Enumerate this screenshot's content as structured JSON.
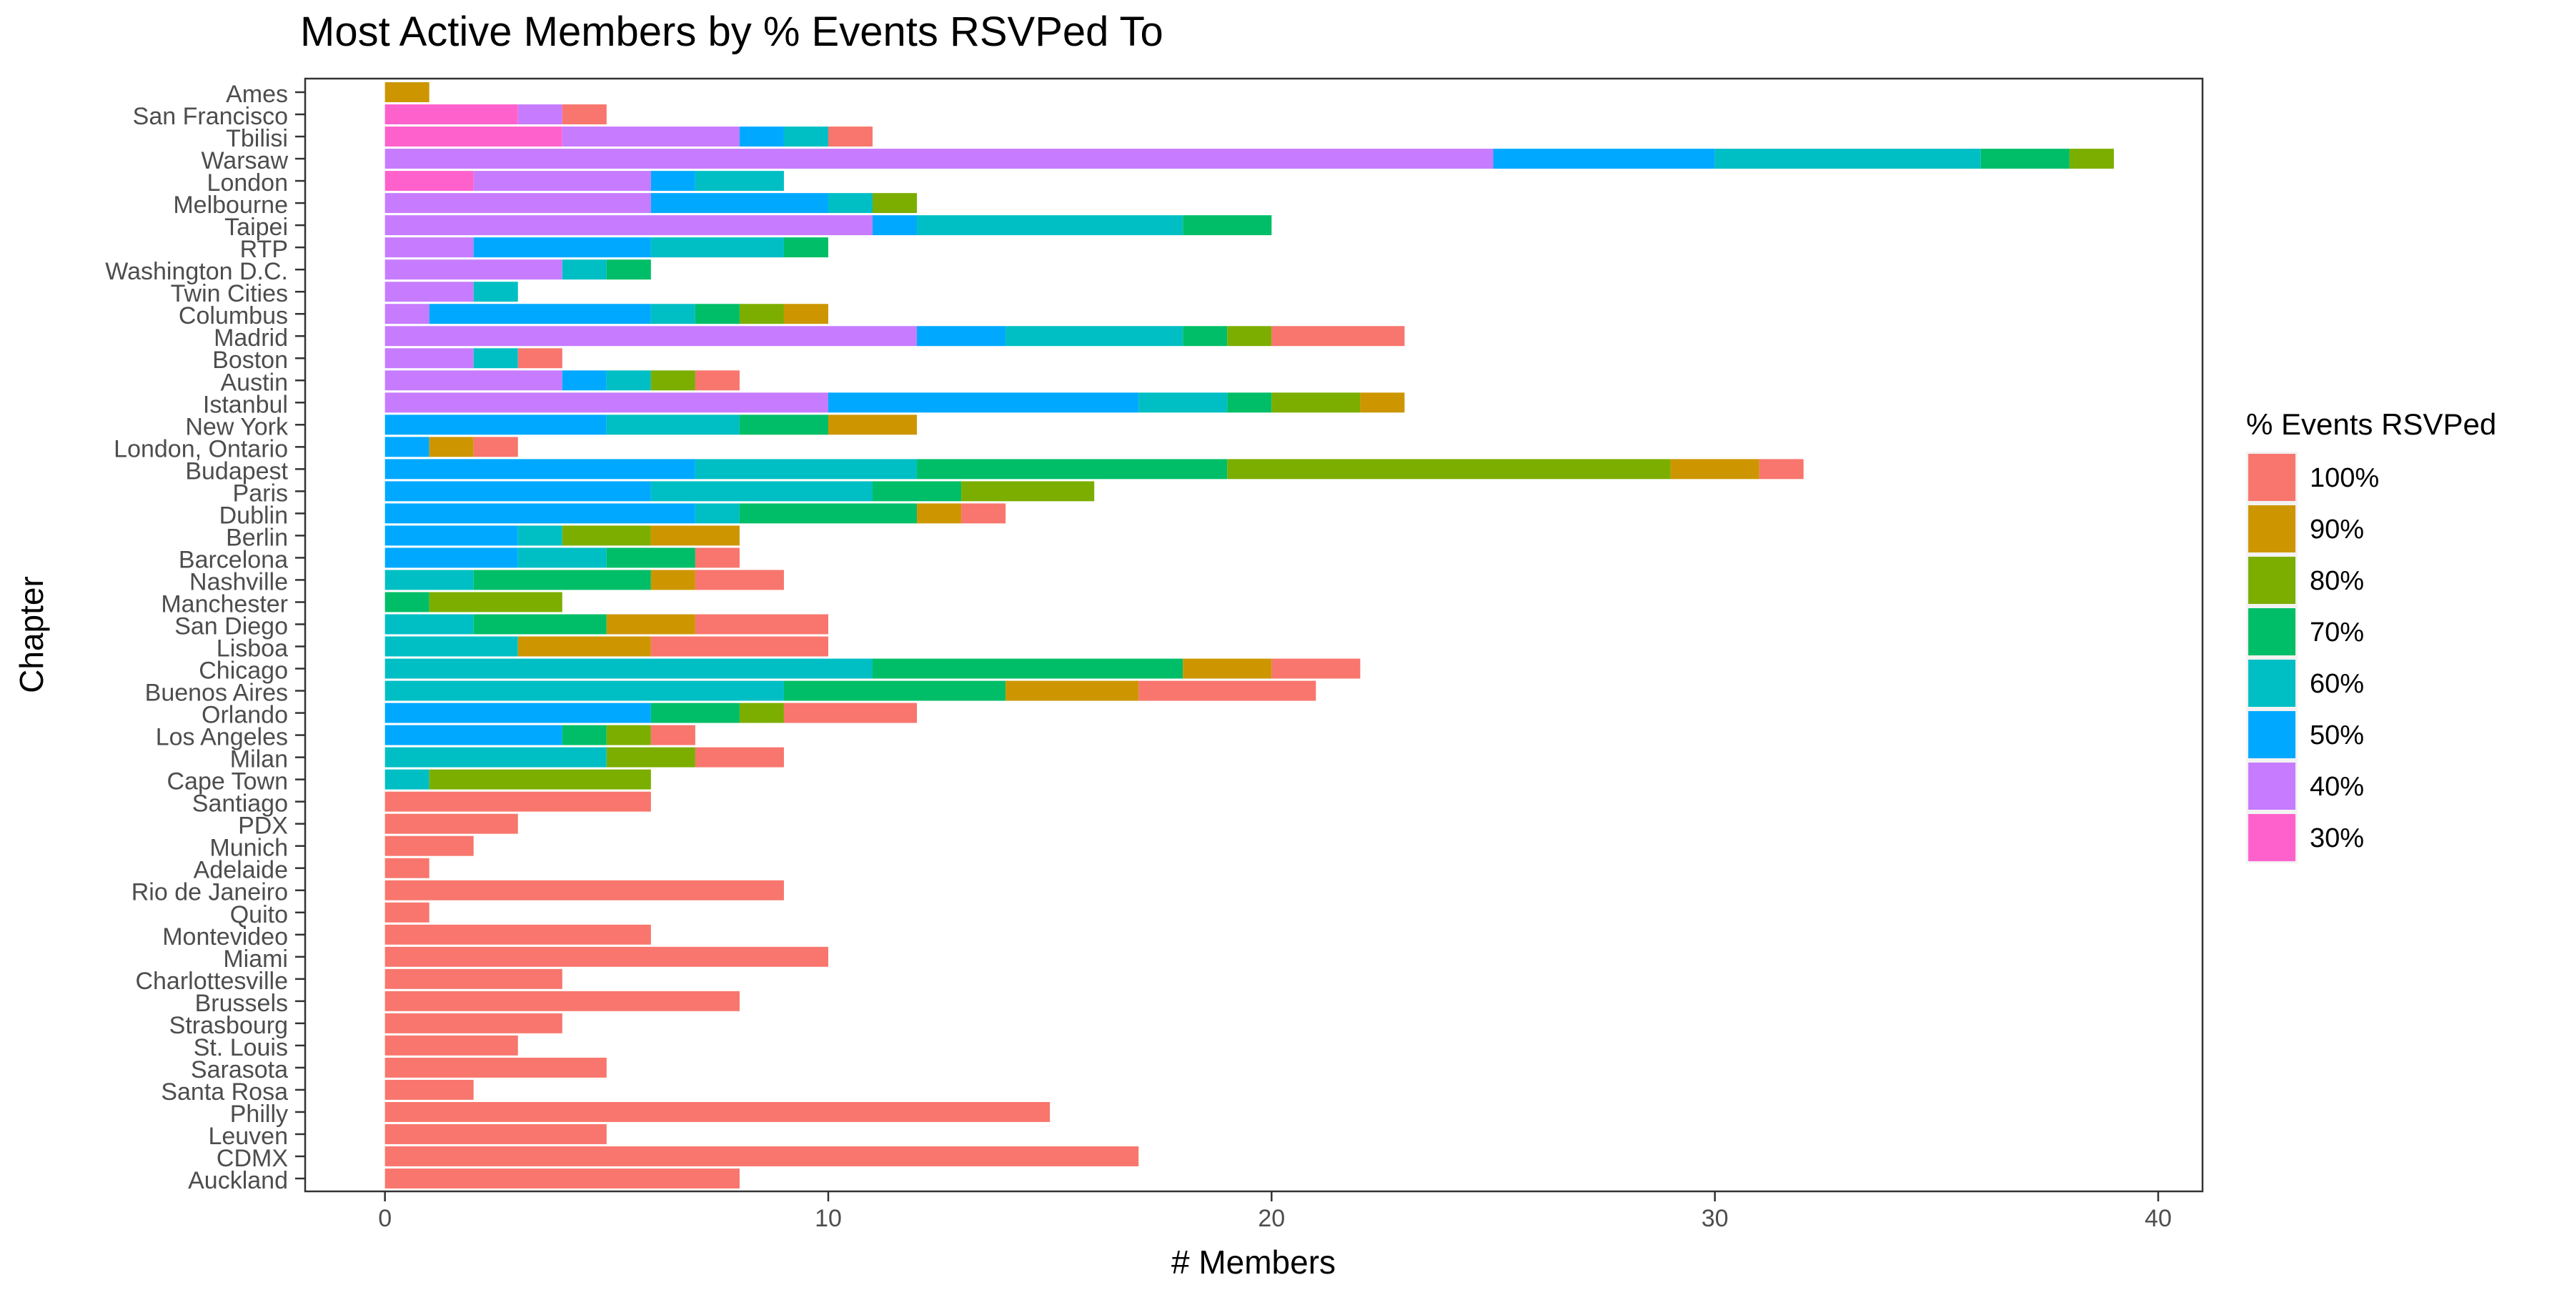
{
  "chart_data": {
    "type": "bar",
    "orientation": "horizontal",
    "stacked": true,
    "title": "Most Active Members by % Events RSVPed To",
    "xlabel": "# Members",
    "ylabel": "Chapter",
    "xlim": [
      -1.8,
      41.0
    ],
    "xticks": [
      0,
      10,
      20,
      30,
      40
    ],
    "grid": false,
    "legend_position": "right",
    "legend_title": "% Events RSVPed",
    "categories": [
      "Ames",
      "San Francisco",
      "Tbilisi",
      "Warsaw",
      "London",
      "Melbourne",
      "Taipei",
      "RTP",
      "Washington D.C.",
      "Twin Cities",
      "Columbus",
      "Madrid",
      "Boston",
      "Austin",
      "Istanbul",
      "New York",
      "London, Ontario",
      "Budapest",
      "Paris",
      "Dublin",
      "Berlin",
      "Barcelona",
      "Nashville",
      "Manchester",
      "San Diego",
      "Lisboa",
      "Chicago",
      "Buenos Aires",
      "Orlando",
      "Los Angeles",
      "Milan",
      "Cape Town",
      "Santiago",
      "PDX",
      "Munich",
      "Adelaide",
      "Rio de Janeiro",
      "Quito",
      "Montevideo",
      "Miami",
      "Charlottesville",
      "Brussels",
      "Strasbourg",
      "St. Louis",
      "Sarasota",
      "Santa Rosa",
      "Philly",
      "Leuven",
      "CDMX",
      "Auckland"
    ],
    "series": [
      {
        "name": "30%",
        "color": "#FF61CC",
        "values": [
          0,
          3,
          4,
          0,
          2,
          0,
          0,
          0,
          0,
          0,
          0,
          0,
          0,
          0,
          0,
          0,
          0,
          0,
          0,
          0,
          0,
          0,
          0,
          0,
          0,
          0,
          0,
          0,
          0,
          0,
          0,
          0,
          0,
          0,
          0,
          0,
          0,
          0,
          0,
          0,
          0,
          0,
          0,
          0,
          0,
          0,
          0,
          0,
          0,
          0
        ]
      },
      {
        "name": "40%",
        "color": "#C77CFF",
        "values": [
          0,
          1,
          4,
          25,
          4,
          6,
          11,
          2,
          4,
          2,
          1,
          12,
          2,
          4,
          10,
          0,
          0,
          0,
          0,
          0,
          0,
          0,
          0,
          0,
          0,
          0,
          0,
          0,
          0,
          0,
          0,
          0,
          0,
          0,
          0,
          0,
          0,
          0,
          0,
          0,
          0,
          0,
          0,
          0,
          0,
          0,
          0,
          0,
          0,
          0
        ]
      },
      {
        "name": "50%",
        "color": "#00A9FF",
        "values": [
          0,
          0,
          1,
          5,
          1,
          4,
          1,
          4,
          0,
          0,
          5,
          2,
          0,
          1,
          7,
          5,
          1,
          7,
          6,
          7,
          3,
          3,
          0,
          0,
          0,
          0,
          0,
          0,
          6,
          4,
          0,
          0,
          0,
          0,
          0,
          0,
          0,
          0,
          0,
          0,
          0,
          0,
          0,
          0,
          0,
          0,
          0,
          0,
          0,
          0
        ]
      },
      {
        "name": "60%",
        "color": "#00BFC4",
        "values": [
          0,
          0,
          1,
          6,
          2,
          1,
          6,
          3,
          1,
          1,
          1,
          4,
          1,
          1,
          2,
          3,
          0,
          5,
          5,
          1,
          1,
          2,
          2,
          0,
          2,
          3,
          11,
          9,
          0,
          0,
          5,
          1,
          0,
          0,
          0,
          0,
          0,
          0,
          0,
          0,
          0,
          0,
          0,
          0,
          0,
          0,
          0,
          0,
          0,
          0
        ]
      },
      {
        "name": "70%",
        "color": "#00BE67",
        "values": [
          0,
          0,
          0,
          2,
          0,
          0,
          2,
          1,
          1,
          0,
          1,
          1,
          0,
          0,
          1,
          2,
          0,
          7,
          2,
          4,
          0,
          2,
          4,
          1,
          3,
          0,
          7,
          5,
          2,
          1,
          0,
          0,
          0,
          0,
          0,
          0,
          0,
          0,
          0,
          0,
          0,
          0,
          0,
          0,
          0,
          0,
          0,
          0,
          0,
          0
        ]
      },
      {
        "name": "80%",
        "color": "#7CAE00",
        "values": [
          0,
          0,
          0,
          1,
          0,
          1,
          0,
          0,
          0,
          0,
          1,
          1,
          0,
          1,
          2,
          0,
          0,
          10,
          3,
          0,
          2,
          0,
          0,
          3,
          0,
          0,
          0,
          0,
          1,
          1,
          2,
          5,
          0,
          0,
          0,
          0,
          0,
          0,
          0,
          0,
          0,
          0,
          0,
          0,
          0,
          0,
          0,
          0,
          0,
          0
        ]
      },
      {
        "name": "90%",
        "color": "#CD9600",
        "values": [
          1,
          0,
          0,
          0,
          0,
          0,
          0,
          0,
          0,
          0,
          1,
          0,
          0,
          0,
          1,
          2,
          1,
          2,
          0,
          1,
          2,
          0,
          1,
          0,
          2,
          3,
          2,
          3,
          0,
          0,
          0,
          0,
          0,
          0,
          0,
          0,
          0,
          0,
          0,
          0,
          0,
          0,
          0,
          0,
          0,
          0,
          0,
          0,
          0,
          0
        ]
      },
      {
        "name": "100%",
        "color": "#F8766D",
        "values": [
          0,
          1,
          1,
          0,
          0,
          0,
          0,
          0,
          0,
          0,
          0,
          3,
          1,
          1,
          0,
          0,
          1,
          1,
          0,
          1,
          0,
          1,
          2,
          0,
          3,
          4,
          2,
          4,
          3,
          1,
          2,
          0,
          6,
          3,
          2,
          1,
          9,
          1,
          6,
          10,
          4,
          8,
          4,
          3,
          5,
          2,
          15,
          5,
          17,
          8
        ]
      }
    ],
    "stack_order": [
      "30%",
      "40%",
      "50%",
      "60%",
      "70%",
      "80%",
      "90%",
      "100%"
    ],
    "legend_order": [
      "100%",
      "90%",
      "80%",
      "70%",
      "60%",
      "50%",
      "40%",
      "30%"
    ]
  }
}
